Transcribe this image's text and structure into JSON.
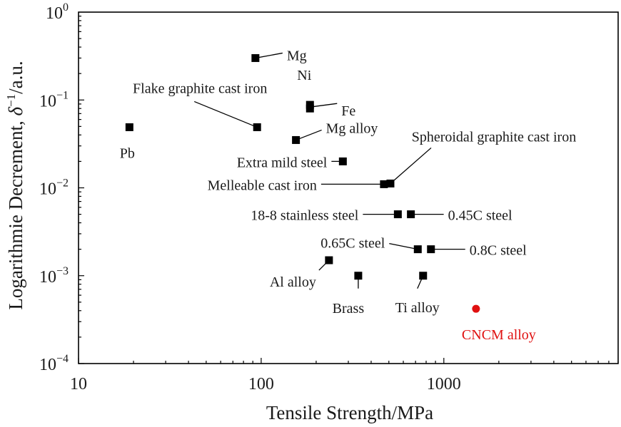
{
  "chart_data": {
    "type": "scatter",
    "xlabel": "Tensile Strength/MPa",
    "ylabel_prefix": "Logarithmie Decrement, ",
    "ylabel_symbol": "δ",
    "ylabel_exp": "−1",
    "ylabel_suffix": "/a.u.",
    "x_scale": "log",
    "y_scale": "log",
    "xlim": [
      10,
      9000
    ],
    "ylim": [
      0.0001,
      1
    ],
    "x_ticks": [
      {
        "value": 10,
        "label": "10"
      },
      {
        "value": 100,
        "label": "100"
      },
      {
        "value": 1000,
        "label": "1000"
      }
    ],
    "y_ticks": [
      {
        "value": 1,
        "base": "10",
        "exp": "0"
      },
      {
        "value": 0.1,
        "base": "10",
        "exp": "−1"
      },
      {
        "value": 0.01,
        "base": "10",
        "exp": "−2"
      },
      {
        "value": 0.001,
        "base": "10",
        "exp": "−3"
      },
      {
        "value": 0.0001,
        "base": "10",
        "exp": "−4"
      }
    ],
    "grid": false,
    "legend": "none",
    "colors": {
      "reference": "#000000",
      "highlight": "#e01010"
    },
    "series": [
      {
        "marker": "square",
        "color": "#000000",
        "points": [
          {
            "label": "Mg",
            "x": 93,
            "y": 0.3
          },
          {
            "label": "Ni",
            "x": 185,
            "y": 0.088
          },
          {
            "label": "Fe",
            "x": 185,
            "y": 0.08
          },
          {
            "label": "Flake graphite cast iron",
            "x": 95,
            "y": 0.049
          },
          {
            "label": "Pb",
            "x": 19,
            "y": 0.049
          },
          {
            "label": "Mg alloy",
            "x": 155,
            "y": 0.035
          },
          {
            "label": "Extra mild steel",
            "x": 280,
            "y": 0.02
          },
          {
            "label": "Melleable cast iron",
            "x": 470,
            "y": 0.011
          },
          {
            "label": "Spheroidal graphite cast iron",
            "x": 510,
            "y": 0.0112
          },
          {
            "label": "18-8 stainless steel",
            "x": 560,
            "y": 0.005
          },
          {
            "label": "0.45C steel",
            "x": 660,
            "y": 0.005
          },
          {
            "label": "0.65C steel",
            "x": 720,
            "y": 0.002
          },
          {
            "label": "0.8C steel",
            "x": 850,
            "y": 0.002
          },
          {
            "label": "Al alloy",
            "x": 235,
            "y": 0.0015
          },
          {
            "label": "Brass",
            "x": 340,
            "y": 0.001
          },
          {
            "label": "Ti alloy",
            "x": 770,
            "y": 0.001
          }
        ]
      },
      {
        "marker": "circle",
        "color": "#e01010",
        "points": [
          {
            "label": "CNCM alloy",
            "x": 1500,
            "y": 0.00042
          }
        ]
      }
    ]
  }
}
